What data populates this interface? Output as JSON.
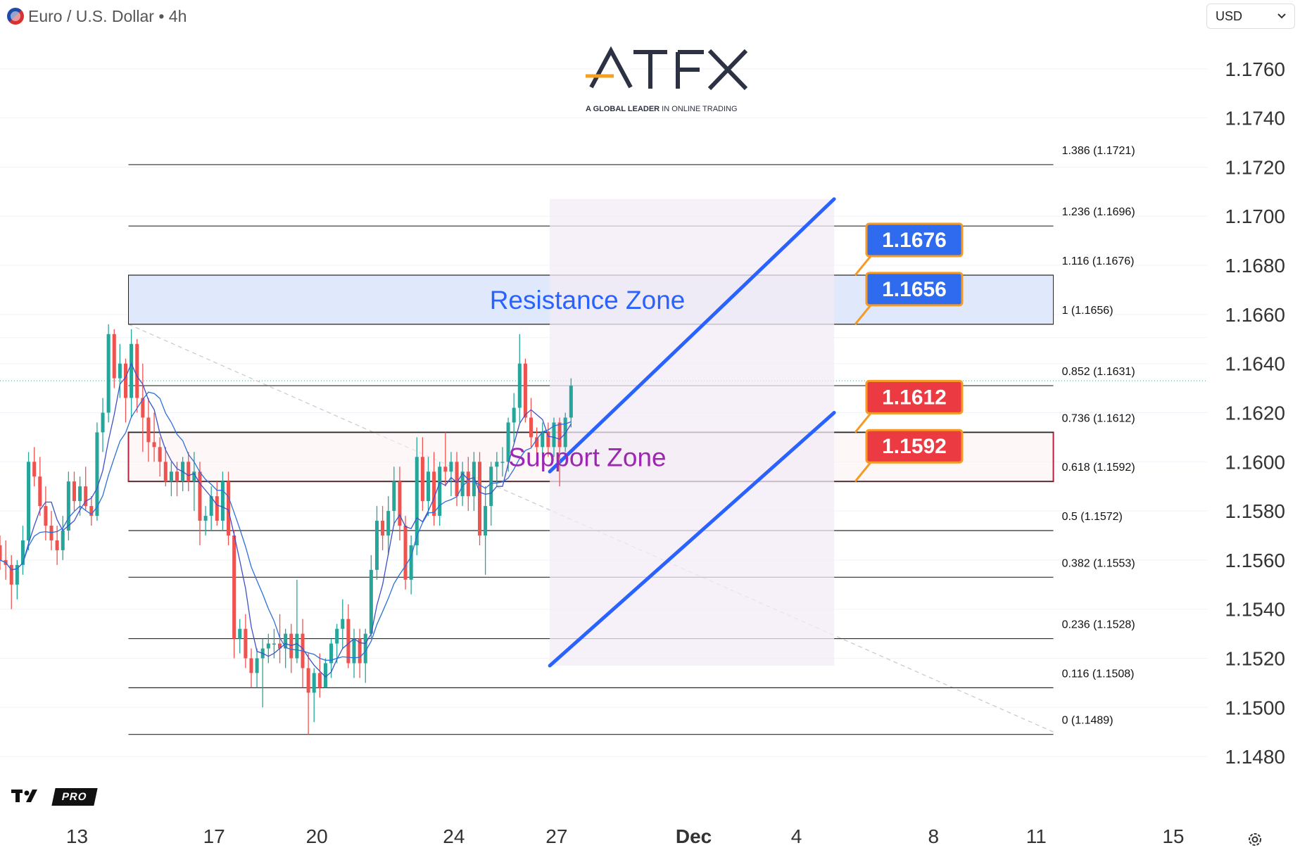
{
  "header": {
    "title": "Euro / U.S. Dollar",
    "separator_1": "/",
    "interval": "4h",
    "title_full": "Euro / U.S. Dollar • 4h"
  },
  "currency_selector": {
    "value": "USD",
    "icon": "chevron-down-icon"
  },
  "logo": {
    "name": "ATFX",
    "tagline_bold": "A GLOBAL LEADER",
    "tagline_rest": " IN ONLINE TRADING"
  },
  "branding": {
    "mark": "TV",
    "badge": "PRO"
  },
  "settings_icon": "gear-icon",
  "colors": {
    "bull": "#26a69a",
    "bear": "#ef5350",
    "channel": "#2962ff",
    "resistance_fill": "#dfe9fb",
    "support_border": "#b5213e",
    "label_blue": "#2f6bef",
    "label_red": "#ec3a42",
    "connector": "#f59a23",
    "resistance_text": "#2962ff",
    "support_text": "#9c27b0"
  },
  "chart_data": {
    "type": "candlestick",
    "symbol": "EURUSD",
    "interval": "4h",
    "y_axis": {
      "ticks": [
        "1.1760",
        "1.1740",
        "1.1720",
        "1.1700",
        "1.1680",
        "1.1660",
        "1.1640",
        "1.1620",
        "1.1600",
        "1.1580",
        "1.1560",
        "1.1540",
        "1.1520",
        "1.1500",
        "1.1480"
      ],
      "range": [
        1.1468,
        1.1778
      ]
    },
    "x_axis": {
      "ticks": [
        "13",
        "17",
        "20",
        "24",
        "27",
        "Dec",
        "4",
        "8",
        "11",
        "15"
      ],
      "tick_days": [
        13,
        17,
        20,
        24,
        27,
        31,
        34,
        38,
        41,
        45
      ],
      "range_days": [
        10.75,
        48.7
      ]
    },
    "fibonacci_levels": [
      {
        "ratio": "1.386",
        "price": "1.1721"
      },
      {
        "ratio": "1.236",
        "price": "1.1696"
      },
      {
        "ratio": "1.116",
        "price": "1.1676"
      },
      {
        "ratio": "1",
        "price": "1.1656"
      },
      {
        "ratio": "0.852",
        "price": "1.1631"
      },
      {
        "ratio": "0.736",
        "price": "1.1612"
      },
      {
        "ratio": "0.618",
        "price": "1.1592"
      },
      {
        "ratio": "0.5",
        "price": "1.1572"
      },
      {
        "ratio": "0.382",
        "price": "1.1553"
      },
      {
        "ratio": "0.236",
        "price": "1.1528"
      },
      {
        "ratio": "0.116",
        "price": "1.1508"
      },
      {
        "ratio": "0",
        "price": "1.1489"
      }
    ],
    "fib_range_days": [
      14.5,
      41.5
    ],
    "zones": [
      {
        "label": "Resistance Zone",
        "top": 1.1676,
        "bottom": 1.1656
      },
      {
        "label": "Support Zone",
        "top": 1.1612,
        "bottom": 1.1592
      }
    ],
    "price_labels": [
      {
        "text": "1.1676",
        "price": 1.1676,
        "style": "blue"
      },
      {
        "text": "1.1656",
        "price": 1.1656,
        "style": "blue"
      },
      {
        "text": "1.1612",
        "price": 1.1612,
        "style": "red"
      },
      {
        "text": "1.1592",
        "price": 1.1592,
        "style": "red"
      }
    ],
    "channel": {
      "upper": {
        "from": [
          26.8,
          1.1596
        ],
        "to": [
          35.1,
          1.1707
        ]
      },
      "lower": {
        "from": [
          26.8,
          1.1517
        ],
        "to": [
          35.1,
          1.162
        ]
      },
      "shade_days": [
        26.8,
        35.1
      ]
    },
    "diagonal_trend": {
      "from": [
        14.5,
        1.1656
      ],
      "to": [
        41.5,
        1.149
      ]
    },
    "current_price": 1.1633,
    "candles_start_day": 10.75,
    "candles_step_day": 0.1667,
    "candles": [
      [
        1.1566,
        1.157,
        1.1556,
        1.156
      ],
      [
        1.156,
        1.1568,
        1.1552,
        1.1558
      ],
      [
        1.1558,
        1.1562,
        1.154,
        1.155
      ],
      [
        1.155,
        1.156,
        1.1544,
        1.1558
      ],
      [
        1.1558,
        1.1574,
        1.1554,
        1.1568
      ],
      [
        1.1568,
        1.1604,
        1.1564,
        1.16
      ],
      [
        1.16,
        1.1606,
        1.159,
        1.1594
      ],
      [
        1.1594,
        1.1602,
        1.1578,
        1.1582
      ],
      [
        1.1582,
        1.159,
        1.1568,
        1.1574
      ],
      [
        1.1574,
        1.158,
        1.1564,
        1.1568
      ],
      [
        1.1568,
        1.1574,
        1.1558,
        1.1564
      ],
      [
        1.1564,
        1.1578,
        1.156,
        1.1572
      ],
      [
        1.1572,
        1.1596,
        1.1568,
        1.1592
      ],
      [
        1.1592,
        1.1596,
        1.158,
        1.1584
      ],
      [
        1.1584,
        1.1594,
        1.1578,
        1.159
      ],
      [
        1.159,
        1.1598,
        1.158,
        1.1582
      ],
      [
        1.1582,
        1.1586,
        1.1574,
        1.1578
      ],
      [
        1.1578,
        1.1616,
        1.1576,
        1.1612
      ],
      [
        1.1612,
        1.1626,
        1.1604,
        1.162
      ],
      [
        1.162,
        1.1656,
        1.1616,
        1.1652
      ],
      [
        1.1652,
        1.1654,
        1.163,
        1.1634
      ],
      [
        1.1634,
        1.1648,
        1.1626,
        1.164
      ],
      [
        1.164,
        1.1642,
        1.1616,
        1.1626
      ],
      [
        1.1626,
        1.1654,
        1.1618,
        1.1648
      ],
      [
        1.1648,
        1.165,
        1.162,
        1.1626
      ],
      [
        1.1626,
        1.164,
        1.1604,
        1.1618
      ],
      [
        1.1618,
        1.1626,
        1.16,
        1.1608
      ],
      [
        1.1608,
        1.162,
        1.16,
        1.1606
      ],
      [
        1.1606,
        1.161,
        1.1594,
        1.16
      ],
      [
        1.16,
        1.1606,
        1.159,
        1.1592
      ],
      [
        1.1592,
        1.16,
        1.1586,
        1.1596
      ],
      [
        1.1596,
        1.16,
        1.1586,
        1.1592
      ],
      [
        1.1592,
        1.1602,
        1.1588,
        1.16
      ],
      [
        1.16,
        1.1604,
        1.1588,
        1.1592
      ],
      [
        1.1592,
        1.1604,
        1.158,
        1.1596
      ],
      [
        1.1596,
        1.16,
        1.1566,
        1.1576
      ],
      [
        1.1576,
        1.1582,
        1.157,
        1.1578
      ],
      [
        1.1578,
        1.159,
        1.1572,
        1.1586
      ],
      [
        1.1586,
        1.1592,
        1.1574,
        1.1576
      ],
      [
        1.1576,
        1.1596,
        1.1572,
        1.1592
      ],
      [
        1.1592,
        1.1596,
        1.1566,
        1.157
      ],
      [
        1.157,
        1.1572,
        1.152,
        1.1528
      ],
      [
        1.1528,
        1.1536,
        1.1522,
        1.1532
      ],
      [
        1.1532,
        1.1538,
        1.1516,
        1.152
      ],
      [
        1.152,
        1.1524,
        1.1508,
        1.1514
      ],
      [
        1.1514,
        1.1524,
        1.1508,
        1.152
      ],
      [
        1.152,
        1.1528,
        1.15,
        1.1524
      ],
      [
        1.1524,
        1.153,
        1.1518,
        1.1526
      ],
      [
        1.1526,
        1.1532,
        1.152,
        1.1526
      ],
      [
        1.1526,
        1.1538,
        1.1518,
        1.1524
      ],
      [
        1.1524,
        1.1532,
        1.1516,
        1.153
      ],
      [
        1.153,
        1.1534,
        1.1514,
        1.152
      ],
      [
        1.152,
        1.1552,
        1.1518,
        1.153
      ],
      [
        1.153,
        1.1536,
        1.1508,
        1.1516
      ],
      [
        1.1516,
        1.1522,
        1.1489,
        1.1506
      ],
      [
        1.1506,
        1.1516,
        1.1494,
        1.1514
      ],
      [
        1.1514,
        1.1522,
        1.1504,
        1.1508
      ],
      [
        1.1508,
        1.152,
        1.1508,
        1.1518
      ],
      [
        1.1518,
        1.1528,
        1.1512,
        1.1526
      ],
      [
        1.1526,
        1.1534,
        1.1518,
        1.1532
      ],
      [
        1.1532,
        1.1544,
        1.1524,
        1.1536
      ],
      [
        1.1536,
        1.1542,
        1.1516,
        1.1518
      ],
      [
        1.1518,
        1.1532,
        1.1512,
        1.1528
      ],
      [
        1.1528,
        1.1532,
        1.1512,
        1.1518
      ],
      [
        1.1518,
        1.1532,
        1.151,
        1.153
      ],
      [
        1.153,
        1.1562,
        1.1528,
        1.1556
      ],
      [
        1.1556,
        1.1582,
        1.1552,
        1.1576
      ],
      [
        1.1576,
        1.1582,
        1.1564,
        1.157
      ],
      [
        1.157,
        1.1586,
        1.1562,
        1.158
      ],
      [
        1.158,
        1.1598,
        1.1574,
        1.1592
      ],
      [
        1.1592,
        1.1598,
        1.1568,
        1.1574
      ],
      [
        1.1574,
        1.1578,
        1.1548,
        1.1552
      ],
      [
        1.1552,
        1.157,
        1.1546,
        1.1566
      ],
      [
        1.1566,
        1.161,
        1.1562,
        1.1602
      ],
      [
        1.1602,
        1.161,
        1.158,
        1.1584
      ],
      [
        1.1584,
        1.1602,
        1.1578,
        1.1596
      ],
      [
        1.1596,
        1.1604,
        1.1574,
        1.1578
      ],
      [
        1.1578,
        1.16,
        1.1574,
        1.1598
      ],
      [
        1.1598,
        1.1612,
        1.159,
        1.1596
      ],
      [
        1.1596,
        1.1604,
        1.1586,
        1.16
      ],
      [
        1.16,
        1.1604,
        1.1582,
        1.1586
      ],
      [
        1.1586,
        1.16,
        1.1582,
        1.1596
      ],
      [
        1.1596,
        1.1602,
        1.158,
        1.1586
      ],
      [
        1.1586,
        1.1604,
        1.158,
        1.16
      ],
      [
        1.16,
        1.1604,
        1.1566,
        1.157
      ],
      [
        1.157,
        1.159,
        1.1554,
        1.1582
      ],
      [
        1.1582,
        1.16,
        1.1574,
        1.1598
      ],
      [
        1.1598,
        1.1604,
        1.159,
        1.16
      ],
      [
        1.16,
        1.1606,
        1.1594,
        1.16
      ],
      [
        1.16,
        1.1618,
        1.1596,
        1.1616
      ],
      [
        1.1616,
        1.1628,
        1.1608,
        1.1622
      ],
      [
        1.1622,
        1.1652,
        1.1616,
        1.164
      ],
      [
        1.164,
        1.1642,
        1.1616,
        1.1618
      ],
      [
        1.1618,
        1.1626,
        1.1606,
        1.161
      ],
      [
        1.161,
        1.1614,
        1.1598,
        1.1606
      ],
      [
        1.1606,
        1.1616,
        1.16,
        1.1612
      ],
      [
        1.1612,
        1.1616,
        1.1602,
        1.1606
      ],
      [
        1.1606,
        1.1618,
        1.1602,
        1.1616
      ],
      [
        1.1616,
        1.1618,
        1.159,
        1.1606
      ],
      [
        1.1606,
        1.162,
        1.1604,
        1.1618
      ],
      [
        1.1618,
        1.1634,
        1.1614,
        1.1631
      ]
    ]
  }
}
